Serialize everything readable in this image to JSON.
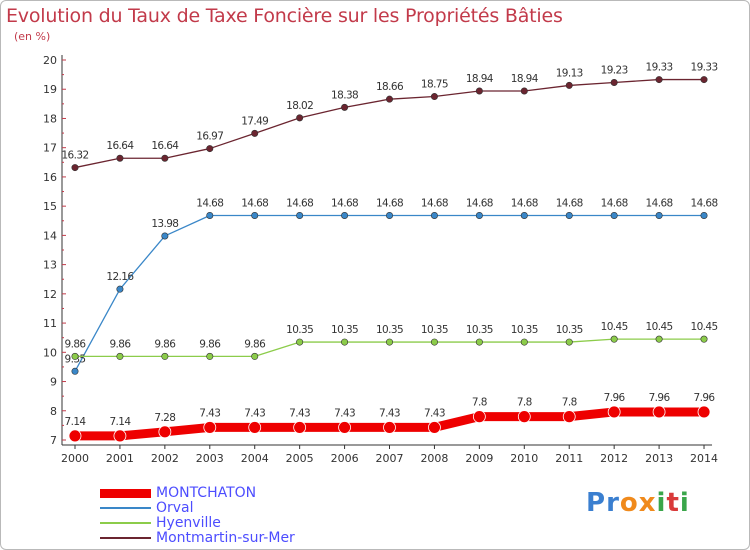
{
  "title": "Evolution du Taux de Taxe Foncière sur les Propriétés Bâties",
  "unit_label": "(en %)",
  "logo": {
    "text": "Proxiti",
    "letters": [
      "P",
      "r",
      "o",
      "x",
      "i",
      "t",
      "i"
    ],
    "colors": [
      "#3a7fd0",
      "#3a7fd0",
      "#f08a1c",
      "#f08a1c",
      "#3aa64a",
      "#d93a3a",
      "#3aa64a"
    ]
  },
  "chart_data": {
    "type": "line",
    "x": [
      "2000",
      "2001",
      "2002",
      "2003",
      "2004",
      "2005",
      "2006",
      "2007",
      "2008",
      "2009",
      "2010",
      "2011",
      "2012",
      "2013",
      "2014"
    ],
    "ylim": [
      7,
      20
    ],
    "yticks": [
      "7",
      "8",
      "9",
      "10",
      "11",
      "12",
      "13",
      "14",
      "15",
      "16",
      "17",
      "18",
      "19",
      "20"
    ],
    "grid": false,
    "legend_position": "bottom-left",
    "series": [
      {
        "name": "MONTCHATON",
        "color": "#ee0000",
        "thick": true,
        "values": [
          7.14,
          7.14,
          7.28,
          7.43,
          7.43,
          7.43,
          7.43,
          7.43,
          7.43,
          7.8,
          7.8,
          7.8,
          7.96,
          7.96,
          7.96
        ],
        "labels": [
          "7.14",
          "7.14",
          "7.28",
          "7.43",
          "7.43",
          "7.43",
          "7.43",
          "7.43",
          "7.43",
          "7.8",
          "7.8",
          "7.8",
          "7.96",
          "7.96",
          "7.96"
        ]
      },
      {
        "name": "Orval",
        "color": "#3a87c8",
        "thick": false,
        "values": [
          9.35,
          12.16,
          13.98,
          14.68,
          14.68,
          14.68,
          14.68,
          14.68,
          14.68,
          14.68,
          14.68,
          14.68,
          14.68,
          14.68,
          14.68
        ],
        "labels": [
          "9.35",
          "12.16",
          "13.98",
          "14.68",
          "14.68",
          "14.68",
          "14.68",
          "14.68",
          "14.68",
          "14.68",
          "14.68",
          "14.68",
          "14.68",
          "14.68",
          "14.68"
        ]
      },
      {
        "name": "Hyenville",
        "color": "#8ccc4a",
        "thick": false,
        "values": [
          9.86,
          9.86,
          9.86,
          9.86,
          9.86,
          10.35,
          10.35,
          10.35,
          10.35,
          10.35,
          10.35,
          10.35,
          10.45,
          10.45,
          10.45
        ],
        "labels": [
          "9.86",
          "9.86",
          "9.86",
          "9.86",
          "9.86",
          "10.35",
          "10.35",
          "10.35",
          "10.35",
          "10.35",
          "10.35",
          "10.35",
          "10.45",
          "10.45",
          "10.45"
        ]
      },
      {
        "name": "Montmartin-sur-Mer",
        "color": "#6b2530",
        "thick": false,
        "values": [
          16.32,
          16.64,
          16.64,
          16.97,
          17.49,
          18.02,
          18.38,
          18.66,
          18.75,
          18.94,
          18.94,
          19.13,
          19.23,
          19.33,
          19.33
        ],
        "labels": [
          "16.32",
          "16.64",
          "16.64",
          "16.97",
          "17.49",
          "18.02",
          "18.38",
          "18.66",
          "18.75",
          "18.94",
          "18.94",
          "19.13",
          "19.23",
          "19.33",
          "19.33"
        ]
      }
    ]
  }
}
